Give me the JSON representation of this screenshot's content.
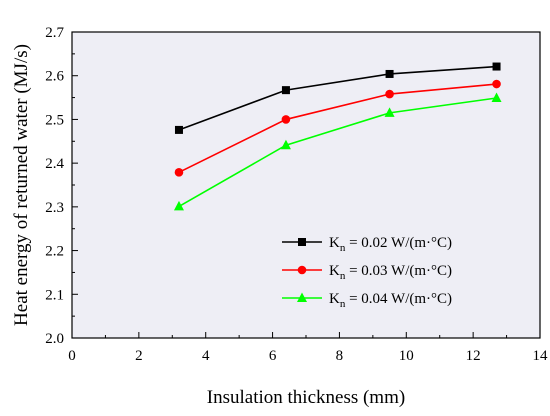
{
  "chart_data": {
    "type": "line",
    "xlabel": "Insulation thickness (mm)",
    "ylabel": "Heat energy of returned water (MJ/s)",
    "xlim": [
      0,
      14
    ],
    "ylim": [
      2.0,
      2.7
    ],
    "x_ticks": [
      "0",
      "2",
      "4",
      "6",
      "8",
      "10",
      "12",
      "14"
    ],
    "y_ticks": [
      "2.0",
      "2.1",
      "2.2",
      "2.3",
      "2.4",
      "2.5",
      "2.6",
      "2.7"
    ],
    "x": [
      3.2,
      6.4,
      9.5,
      12.7
    ],
    "grid": false,
    "legend_position": "bottom-right",
    "plot_background": "#eeeef5",
    "series": [
      {
        "name_main": "K",
        "name_sub": "n",
        "name_rest": " = 0.02 W/(m·°C)",
        "color": "#000000",
        "marker": "square",
        "values": [
          2.476,
          2.567,
          2.604,
          2.621
        ]
      },
      {
        "name_main": "K",
        "name_sub": "n",
        "name_rest": " = 0.03 W/(m·°C)",
        "color": "#ff0000",
        "marker": "circle",
        "values": [
          2.379,
          2.5,
          2.558,
          2.581
        ]
      },
      {
        "name_main": "K",
        "name_sub": "n",
        "name_rest": " = 0.04 W/(m·°C)",
        "color": "#00ff00",
        "marker": "triangle",
        "values": [
          2.301,
          2.441,
          2.515,
          2.549
        ]
      }
    ]
  }
}
